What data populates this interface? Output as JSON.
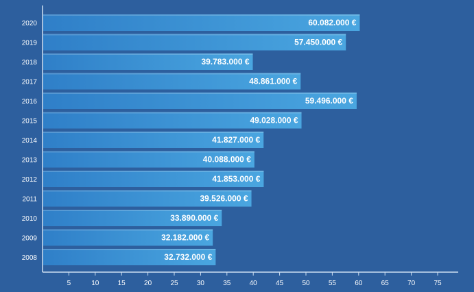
{
  "chart_data": {
    "type": "bar",
    "orientation": "horizontal",
    "categories": [
      "2020",
      "2019",
      "2018",
      "2017",
      "2016",
      "2015",
      "2014",
      "2013",
      "2012",
      "2011",
      "2010",
      "2009",
      "2008"
    ],
    "values": [
      60.082,
      57.45,
      39.783,
      48.861,
      59.496,
      49.028,
      41.827,
      40.088,
      41.853,
      39.526,
      33.89,
      32.182,
      32.732
    ],
    "data_labels": [
      "60.082.000 €",
      "57.450.000 €",
      "39.783.000 €",
      "48.861.000 €",
      "59.496.000 €",
      "49.028.000 €",
      "41.827.000 €",
      "40.088.000 €",
      "41.853.000 €",
      "39.526.000 €",
      "33.890.000 €",
      "32.182.000 €",
      "32.732.000 €"
    ],
    "x_ticks": [
      5,
      10,
      15,
      20,
      25,
      30,
      35,
      40,
      45,
      50,
      55,
      60,
      65,
      70,
      75
    ],
    "xlim": [
      0,
      80
    ],
    "title": "",
    "xlabel": "",
    "ylabel": "",
    "grid": false,
    "colors": {
      "background": "#2d5f9e",
      "bar_dark": "#2f7fc8",
      "bar_light": "#4aa6e0",
      "axis": "#cfe0f2",
      "text": "#ffffff"
    }
  }
}
